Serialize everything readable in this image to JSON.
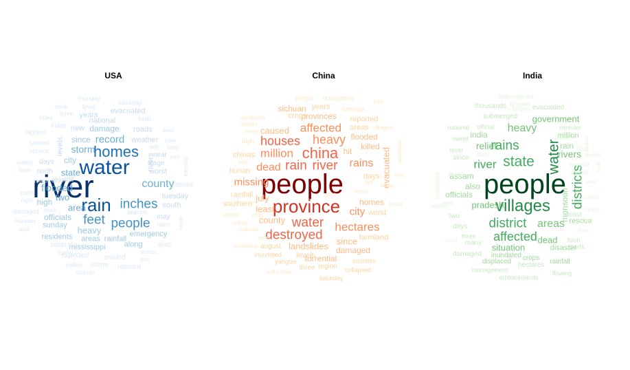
{
  "panels": [
    {
      "id": "usa",
      "title": "USA",
      "words": [
        [
          "river",
          46,
          "#08306b"
        ],
        [
          "water",
          30,
          "#08519c"
        ],
        [
          "rain",
          26,
          "#08519c"
        ],
        [
          "homes",
          22,
          "#2171b5"
        ],
        [
          "inches",
          19,
          "#4292c6"
        ],
        [
          "feet",
          19,
          "#4292c6"
        ],
        [
          "people",
          19,
          "#4292c6"
        ],
        [
          "county",
          16,
          "#6baed6"
        ],
        [
          "record",
          15,
          "#6baed6"
        ],
        [
          "storm",
          14,
          "#6baed6"
        ],
        [
          "flooded",
          14,
          "#6baed6"
        ],
        [
          "state",
          13,
          "#6baed6"
        ],
        [
          "two",
          13,
          "#6baed6"
        ],
        [
          "area",
          13,
          "#6baed6"
        ],
        [
          "heavy",
          13,
          "#9ecae1"
        ],
        [
          "damage",
          12,
          "#9ecae1"
        ],
        [
          "since",
          12,
          "#9ecae1"
        ],
        [
          "city",
          12,
          "#9ecae1"
        ],
        [
          "officials",
          12,
          "#9ecae1"
        ],
        [
          "high",
          12,
          "#9ecae1"
        ],
        [
          "emergency",
          11,
          "#9ecae1"
        ],
        [
          "rainfall",
          11,
          "#9ecae1"
        ],
        [
          "areas",
          11,
          "#9ecae1"
        ],
        [
          "residents",
          11,
          "#9ecae1"
        ],
        [
          "mississippi",
          11,
          "#9ecae1"
        ],
        [
          "along",
          11,
          "#9ecae1"
        ],
        [
          "sunday",
          11,
          "#9ecae1"
        ],
        [
          "national",
          11,
          "#c6dbef"
        ],
        [
          "evacuated",
          11,
          "#c6dbef"
        ],
        [
          "years",
          11,
          "#c6dbef"
        ],
        [
          "new",
          11,
          "#c6dbef"
        ],
        [
          "roads",
          11,
          "#c6dbef"
        ],
        [
          "weather",
          11,
          "#c6dbef"
        ],
        [
          "levels",
          11,
          "#c6dbef"
        ],
        [
          "rivers",
          11,
          "#c6dbef"
        ],
        [
          "worst",
          11,
          "#c6dbef"
        ],
        [
          "tuesday",
          11,
          "#c6dbef"
        ],
        [
          "south",
          11,
          "#c6dbef"
        ],
        [
          "days",
          10,
          "#c6dbef"
        ],
        [
          "north",
          10,
          "#c6dbef"
        ],
        [
          "also",
          10,
          "#c6dbef"
        ],
        [
          "still",
          10,
          "#c6dbef"
        ],
        [
          "near",
          10,
          "#c6dbef"
        ],
        [
          "stage",
          10,
          "#c6dbef"
        ],
        [
          "may",
          10,
          "#c6dbef"
        ],
        [
          "expected",
          10,
          "#dbe9f6"
        ],
        [
          "several",
          10,
          "#dbe9f6"
        ],
        [
          "around",
          10,
          "#dbe9f6"
        ],
        [
          "million",
          9,
          "#dbe9f6"
        ],
        [
          "storms",
          9,
          "#dbe9f6"
        ],
        [
          "reported",
          9,
          "#dbe9f6"
        ],
        [
          "many",
          9,
          "#dbe9f6"
        ],
        [
          "dead",
          9,
          "#dbe9f6"
        ],
        [
          "caused",
          9,
          "#dbe9f6"
        ],
        [
          "service",
          9,
          "#dbe9f6"
        ],
        [
          "highest",
          9,
          "#dbe9f6"
        ],
        [
          "friday",
          9,
          "#dbe9f6"
        ],
        [
          "three",
          9,
          "#dbe9f6"
        ],
        [
          "miles",
          8,
          "#dbe9f6"
        ],
        [
          "creek",
          8,
          "#dbe9f6"
        ],
        [
          "level",
          9,
          "#dbe9f6"
        ],
        [
          "monday",
          9,
          "#dbe9f6"
        ],
        [
          "saturday",
          9,
          "#dbe9f6"
        ],
        [
          "flash",
          9,
          "#dbe9f6"
        ],
        [
          "west",
          8,
          "#dbe9f6"
        ],
        [
          "iowa",
          8,
          "#dbe9f6"
        ],
        [
          "will",
          9,
          "#dbe9f6"
        ],
        [
          "early",
          8,
          "#dbe9f6"
        ],
        [
          "fred",
          8,
          "#dbe9f6"
        ],
        [
          "closed",
          9,
          "#dbe9f6"
        ],
        [
          "morning",
          8,
          "#dbe9f6"
        ],
        [
          "rains",
          9,
          "#dbe9f6"
        ],
        [
          "home",
          8,
          "#dbe9f6"
        ],
        [
          "parts",
          9,
          "#dbe9f6"
        ],
        [
          "night",
          8,
          "#dbe9f6"
        ],
        [
          "damaged",
          9,
          "#dbe9f6"
        ],
        [
          "thursday",
          8,
          "#dbe9f6"
        ],
        [
          "april",
          8,
          "#dbe9f6"
        ],
        [
          "waters",
          8,
          "#dbe9f6"
        ],
        [
          "town",
          8,
          "#dbe9f6"
        ],
        [
          "major",
          9,
          "#dbe9f6"
        ],
        [
          "disaster",
          8,
          "#dbe9f6"
        ],
        [
          "across",
          8,
          "#dbe9f6"
        ],
        [
          "just",
          8,
          "#dbe9f6"
        ],
        [
          "one",
          9,
          "#dbe9f6"
        ],
        [
          "forecast",
          8,
          "#dbe9f6"
        ],
        [
          "much",
          8,
          "#dbe9f6"
        ]
      ]
    },
    {
      "id": "china",
      "title": "China",
      "words": [
        [
          "people",
          40,
          "#7f0000"
        ],
        [
          "province",
          26,
          "#d7301f"
        ],
        [
          "china",
          22,
          "#ef6548"
        ],
        [
          "destroyed",
          19,
          "#ef6548"
        ],
        [
          "water",
          19,
          "#ef6548"
        ],
        [
          "rain",
          19,
          "#ef6548"
        ],
        [
          "river",
          19,
          "#ef6548"
        ],
        [
          "houses",
          18,
          "#ef6548"
        ],
        [
          "heavy",
          18,
          "#fc8d59"
        ],
        [
          "affected",
          17,
          "#fc8d59"
        ],
        [
          "million",
          17,
          "#fc8d59"
        ],
        [
          "hectares",
          17,
          "#fc8d59"
        ],
        [
          "rains",
          16,
          "#fc8d59"
        ],
        [
          "dead",
          16,
          "#fc8d59"
        ],
        [
          "missing",
          15,
          "#fc8d59"
        ],
        [
          "city",
          15,
          "#fc8d59"
        ],
        [
          "least",
          13,
          "#fdbb84"
        ],
        [
          "july",
          13,
          "#fdbb84"
        ],
        [
          "county",
          13,
          "#fdbb84"
        ],
        [
          "landslides",
          13,
          "#fdbb84"
        ],
        [
          "since",
          13,
          "#fdbb84"
        ],
        [
          "evacuated",
          13,
          "#fdbb84"
        ],
        [
          "caused",
          13,
          "#fdbb84"
        ],
        [
          "killed",
          12,
          "#fdbb84"
        ],
        [
          "flooded",
          12,
          "#fdbb84"
        ],
        [
          "homes",
          12,
          "#fdbb84"
        ],
        [
          "provinces",
          12,
          "#fdbb84"
        ],
        [
          "sichuan",
          12,
          "#fdbb84"
        ],
        [
          "hit",
          12,
          "#fdbb84"
        ],
        [
          "torrential",
          12,
          "#fdbb84"
        ],
        [
          "damaged",
          12,
          "#fdbb84"
        ],
        [
          "farmland",
          11,
          "#fdd49e"
        ],
        [
          "days",
          11,
          "#fdd49e"
        ],
        [
          "levels",
          11,
          "#fdd49e"
        ],
        [
          "reported",
          11,
          "#fdd49e"
        ],
        [
          "areas",
          11,
          "#fdd49e"
        ],
        [
          "crops",
          11,
          "#fdd49e"
        ],
        [
          "years",
          11,
          "#fdd49e"
        ],
        [
          "worst",
          11,
          "#fdd49e"
        ],
        [
          "southern",
          11,
          "#fdd49e"
        ],
        [
          "rainfall",
          11,
          "#fdd49e"
        ],
        [
          "hunan",
          11,
          "#fdd49e"
        ],
        [
          "chinas",
          11,
          "#fdd49e"
        ],
        [
          "august",
          10,
          "#fdd49e"
        ],
        [
          "three",
          10,
          "#fdd49e"
        ],
        [
          "region",
          10,
          "#fdd49e"
        ],
        [
          "counties",
          9,
          "#fdd49e"
        ],
        [
          "collapsed",
          9,
          "#fdd49e"
        ],
        [
          "yangtze",
          9,
          "#fdd49e"
        ],
        [
          "inundated",
          9,
          "#fdd49e"
        ],
        [
          "saturday",
          9,
          "#fdd49e"
        ],
        [
          "authorities",
          8,
          "#fee8c8"
        ],
        [
          "according",
          8,
          "#fee8c8"
        ],
        [
          "typhoon",
          8,
          "#fee8c8"
        ],
        [
          "xinhua",
          8,
          "#fee8c8"
        ],
        [
          "central",
          8,
          "#fee8c8"
        ],
        [
          "may",
          9,
          "#fee8c8"
        ],
        [
          "two",
          9,
          "#fee8c8"
        ],
        [
          "june",
          8,
          "#fee8c8"
        ],
        [
          "high",
          9,
          "#fee8c8"
        ],
        [
          "rivers",
          8,
          "#fee8c8"
        ],
        [
          "meters",
          8,
          "#fee8c8"
        ],
        [
          "rainstorms",
          8,
          "#fee8c8"
        ],
        [
          "jiangxi",
          9,
          "#fee8c8"
        ],
        [
          "guangdong",
          9,
          "#fee8c8"
        ],
        [
          "damage",
          9,
          "#fee8c8"
        ],
        [
          "villages",
          9,
          "#fee8c8"
        ],
        [
          "left",
          9,
          "#fee8c8"
        ],
        [
          "level",
          9,
          "#fee8c8"
        ],
        [
          "along",
          8,
          "#fee8c8"
        ],
        [
          "local",
          9,
          "#fee8c8"
        ],
        [
          "also",
          8,
          "#fee8c8"
        ],
        [
          "one",
          8,
          "#fee8c8"
        ],
        [
          "provincial",
          8,
          "#fee8c8"
        ],
        [
          "new",
          8,
          "#fee8c8"
        ]
      ]
    },
    {
      "id": "india",
      "title": "India",
      "words": [
        [
          "people",
          40,
          "#00441b"
        ],
        [
          "villages",
          24,
          "#238b45"
        ],
        [
          "state",
          21,
          "#41ab5d"
        ],
        [
          "rains",
          19,
          "#41ab5d"
        ],
        [
          "district",
          19,
          "#41ab5d"
        ],
        [
          "water",
          21,
          "#238b45"
        ],
        [
          "districts",
          19,
          "#41ab5d"
        ],
        [
          "affected",
          18,
          "#41ab5d"
        ],
        [
          "river",
          17,
          "#41ab5d"
        ],
        [
          "areas",
          16,
          "#74c476"
        ],
        [
          "heavy",
          16,
          "#74c476"
        ],
        [
          "relief",
          14,
          "#74c476"
        ],
        [
          "rivers",
          14,
          "#74c476"
        ],
        [
          "government",
          13,
          "#74c476"
        ],
        [
          "pradesh",
          13,
          "#74c476"
        ],
        [
          "dead",
          13,
          "#74c476"
        ],
        [
          "situation",
          13,
          "#74c476"
        ],
        [
          "monsoon",
          12,
          "#a1d99b"
        ],
        [
          "assam",
          12,
          "#a1d99b"
        ],
        [
          "officials",
          12,
          "#a1d99b"
        ],
        [
          "india",
          12,
          "#a1d99b"
        ],
        [
          "also",
          12,
          "#a1d99b"
        ],
        [
          "rain",
          12,
          "#a1d99b"
        ],
        [
          "million",
          11,
          "#a1d99b"
        ],
        [
          "rescue",
          11,
          "#a1d99b"
        ],
        [
          "disaster",
          11,
          "#a1d99b"
        ],
        [
          "crops",
          10,
          "#a1d99b"
        ],
        [
          "rainfall",
          10,
          "#a1d99b"
        ],
        [
          "displaced",
          10,
          "#a1d99b"
        ],
        [
          "inundated",
          10,
          "#a1d99b"
        ],
        [
          "damaged",
          10,
          "#c7e9c0"
        ],
        [
          "hectares",
          10,
          "#c7e9c0"
        ],
        [
          "management",
          9,
          "#c7e9c0"
        ],
        [
          "embankments",
          9,
          "#c7e9c0"
        ],
        [
          "flowing",
          9,
          "#c7e9c0"
        ],
        [
          "submerged",
          10,
          "#c7e9c0"
        ],
        [
          "thousands",
          10,
          "#c7e9c0"
        ],
        [
          "evacuated",
          10,
          "#c7e9c0"
        ],
        [
          "minister",
          9,
          "#c7e9c0"
        ],
        [
          "official",
          9,
          "#c7e9c0"
        ],
        [
          "national",
          9,
          "#c7e9c0"
        ],
        [
          "level",
          9,
          "#c7e9c0"
        ],
        [
          "days",
          10,
          "#c7e9c0"
        ],
        [
          "since",
          10,
          "#c7e9c0"
        ],
        [
          "many",
          10,
          "#c7e9c0"
        ],
        [
          "three",
          9,
          "#c7e9c0"
        ],
        [
          "least",
          10,
          "#c7e9c0"
        ],
        [
          "parts",
          10,
          "#c7e9c0"
        ],
        [
          "flash",
          9,
          "#c7e9c0"
        ],
        [
          "two",
          10,
          "#c7e9c0"
        ],
        [
          "swept",
          9,
          "#c7e9c0"
        ],
        [
          "landslides",
          9,
          "#e5f5e0"
        ],
        [
          "bihar",
          9,
          "#e5f5e0"
        ],
        [
          "brahmaputra",
          9,
          "#e5f5e0"
        ],
        [
          "danger",
          9,
          "#e5f5e0"
        ],
        [
          "several",
          9,
          "#e5f5e0"
        ],
        [
          "food",
          8,
          "#e5f5e0"
        ],
        [
          "road",
          8,
          "#e5f5e0"
        ],
        [
          "shelter",
          8,
          "#e5f5e0"
        ],
        [
          "homes",
          9,
          "#e5f5e0"
        ],
        [
          "flooded",
          9,
          "#e5f5e0"
        ],
        [
          "away",
          9,
          "#e5f5e0"
        ],
        [
          "cases",
          8,
          "#e5f5e0"
        ],
        [
          "army",
          8,
          "#e5f5e0"
        ],
        [
          "camps",
          8,
          "#e5f5e0"
        ],
        [
          "killed",
          8,
          "#e5f5e0"
        ],
        [
          "blocked",
          8,
          "#e5f5e0"
        ],
        [
          "held",
          8,
          "#e5f5e0"
        ],
        [
          "region",
          8,
          "#e5f5e0"
        ],
        [
          "west",
          8,
          "#e5f5e0"
        ],
        [
          "level",
          8,
          "#e5f5e0"
        ],
        [
          "due",
          9,
          "#e5f5e0"
        ]
      ]
    }
  ]
}
